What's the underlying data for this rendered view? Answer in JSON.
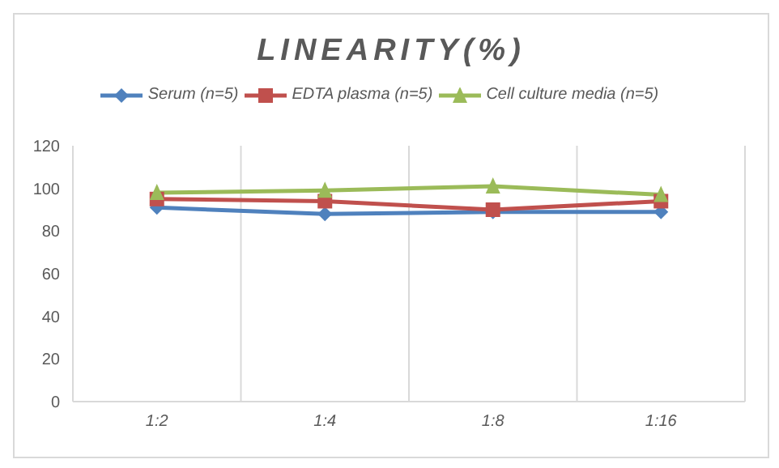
{
  "chart_data": {
    "type": "line",
    "title": "LINEARITY(%)",
    "categories": [
      "1:2",
      "1:4",
      "1:8",
      "1:16"
    ],
    "series": [
      {
        "name": "Serum (n=5)",
        "color": "#4f81bd",
        "marker": "diamond",
        "values": [
          91,
          88,
          89,
          89
        ]
      },
      {
        "name": "EDTA plasma (n=5)",
        "color": "#c0504d",
        "marker": "square",
        "values": [
          95,
          94,
          90,
          94
        ]
      },
      {
        "name": "Cell culture media (n=5)",
        "color": "#9bbb59",
        "marker": "triangle",
        "values": [
          98,
          99,
          101,
          97
        ]
      }
    ],
    "ylim": [
      0,
      120
    ],
    "yticks": [
      0,
      20,
      40,
      60,
      80,
      100,
      120
    ],
    "grid": "x",
    "legend": "top"
  }
}
